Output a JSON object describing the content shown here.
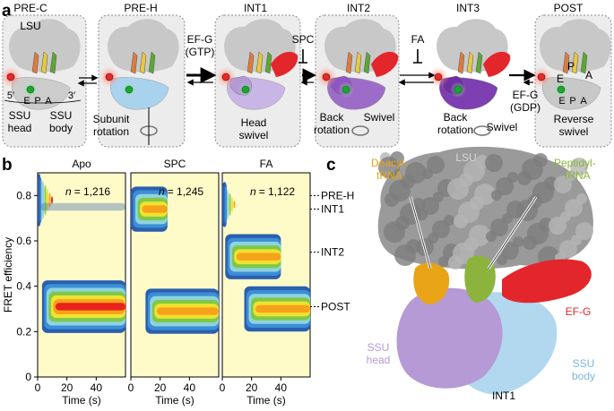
{
  "figure": {
    "panels": {
      "a": "a",
      "b": "b",
      "c": "c"
    }
  },
  "panel_a": {
    "states": [
      {
        "name": "PRE-C",
        "labels": [
          "LSU",
          "E",
          "P",
          "A",
          "5′",
          "3′",
          "SSU",
          "head",
          "SSU",
          "body"
        ]
      },
      {
        "name": "PRE-H",
        "labels": [
          "Subunit",
          "rotation"
        ]
      },
      {
        "name": "INT1",
        "labels": [
          "Head",
          "swivel"
        ]
      },
      {
        "name": "INT2",
        "labels": [
          "Back",
          "rotation",
          "Swivel"
        ]
      },
      {
        "name": "INT3",
        "labels": [
          "Back",
          "rotation",
          "Swivel"
        ]
      },
      {
        "name": "POST",
        "labels": [
          "E",
          "P",
          "A",
          "E",
          "P",
          "A",
          "Reverse",
          "swivel"
        ]
      }
    ],
    "transitions": {
      "efg_gtp_line1": "EF-G",
      "efg_gtp_line2": "(GTP)",
      "spc": "SPC",
      "fa": "FA",
      "efg_gdp_line1": "EF-G",
      "efg_gdp_line2": "(GDP)"
    }
  },
  "chart_data": {
    "type": "heatmap",
    "ylabel": "FRET efficiency",
    "xlabel": "Time (s)",
    "ylim": [
      0,
      0.9
    ],
    "xlim": [
      0,
      60
    ],
    "y_ticks": [
      0,
      0.2,
      0.4,
      0.6,
      0.8
    ],
    "x_ticks": [
      0,
      20,
      40
    ],
    "state_labels": [
      {
        "name": "PRE-H",
        "fret": 0.8
      },
      {
        "name": "INT1",
        "fret": 0.74
      },
      {
        "name": "INT2",
        "fret": 0.55
      },
      {
        "name": "POST",
        "fret": 0.31
      }
    ],
    "panels": [
      {
        "title": "Apo",
        "n_label": "n",
        "n_value": "= 1,216",
        "bands": [
          {
            "fret": 0.78,
            "t_start": 0,
            "t_end": 2,
            "intensity": 1.0
          },
          {
            "fret": 0.75,
            "t_start": 2,
            "t_end": 60,
            "intensity": 0.05
          },
          {
            "fret": 0.31,
            "t_start": 3,
            "t_end": 60,
            "intensity": 1.0
          }
        ]
      },
      {
        "title": "SPC",
        "n_label": "n",
        "n_value": "= 1,245",
        "bands": [
          {
            "fret": 0.74,
            "t_start": 0,
            "t_end": 25,
            "intensity": 0.9
          },
          {
            "fret": 0.29,
            "t_start": 10,
            "t_end": 60,
            "intensity": 0.9
          }
        ]
      },
      {
        "title": "FA",
        "n_label": "n",
        "n_value": "= 1,122",
        "bands": [
          {
            "fret": 0.76,
            "t_start": 0,
            "t_end": 3,
            "intensity": 0.9
          },
          {
            "fret": 0.53,
            "t_start": 2,
            "t_end": 40,
            "intensity": 0.85
          },
          {
            "fret": 0.3,
            "t_start": 15,
            "t_end": 60,
            "intensity": 0.9
          }
        ]
      }
    ]
  },
  "panel_c": {
    "labels": {
      "lsu": "LSU",
      "deacyl_1": "Deacyl-",
      "deacyl_2": "tRNA",
      "peptidyl_1": "Peptidyl-",
      "peptidyl_2": "tRNA",
      "efg": "EF-G",
      "ssu_head_1": "SSU",
      "ssu_head_2": "head",
      "ssu_body_1": "SSU",
      "ssu_body_2": "body",
      "state": "INT1"
    },
    "colors": {
      "lsu": "#8c8c8c",
      "deacyl": "#e8a317",
      "peptidyl": "#8cb43c",
      "efg": "#e3262b",
      "ssu_head": "#b59ad6",
      "ssu_body": "#a8d4ec"
    }
  }
}
